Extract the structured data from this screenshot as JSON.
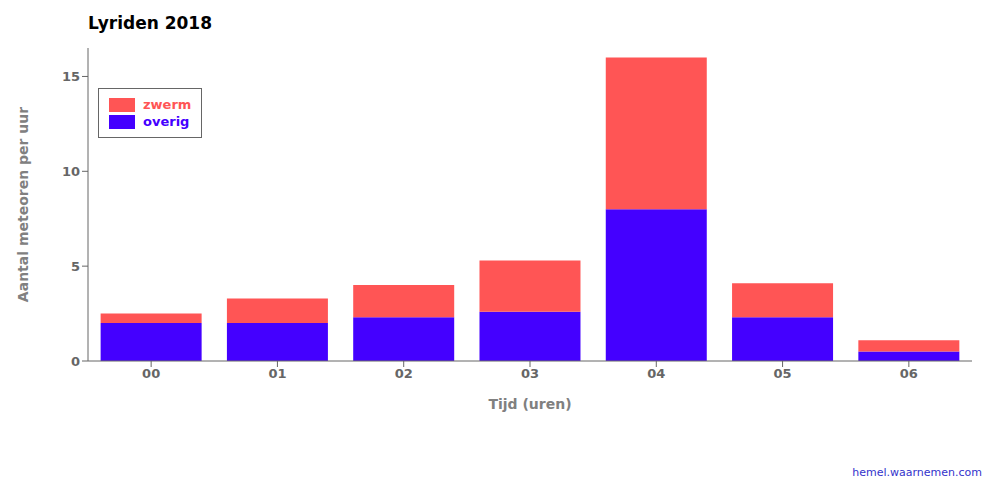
{
  "chart_data": {
    "type": "bar",
    "title": "Lyriden 2018",
    "x_label": "Tijd (uren)",
    "y_label": "Aantal meteoren per uur",
    "categories": [
      "00",
      "01",
      "02",
      "03",
      "04",
      "05",
      "06"
    ],
    "series": [
      {
        "name": "overig",
        "color": "#4400FF",
        "values": [
          2.0,
          2.0,
          2.3,
          2.6,
          8.0,
          2.3,
          0.5
        ]
      },
      {
        "name": "zwerm",
        "color": "#FF5555",
        "values": [
          0.5,
          1.3,
          1.7,
          2.7,
          8.0,
          1.8,
          0.6
        ]
      }
    ],
    "stacked": true,
    "ylim": [
      0,
      16.5
    ],
    "yticks": [
      0,
      5,
      10,
      15
    ],
    "grid": false,
    "legend": "upper left",
    "annotations": [
      {
        "text": "hemel.waarnemen.com",
        "color": "#3333CC"
      }
    ]
  }
}
